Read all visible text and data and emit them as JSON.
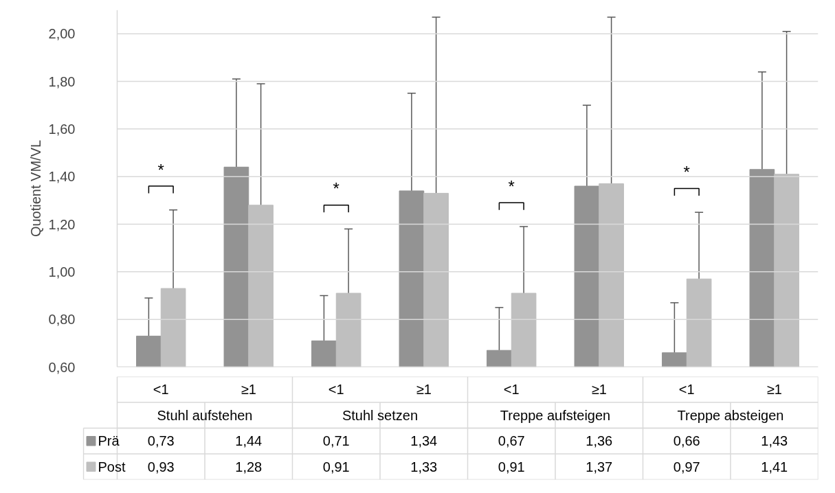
{
  "chart_data": {
    "type": "bar",
    "ylabel": "Quotient VM/VL",
    "categories": [
      "<1",
      "≥1",
      "<1",
      "≥1",
      "<1",
      "≥1",
      "<1",
      "≥1"
    ],
    "series": [
      {
        "name": "Prä",
        "color": "#939393",
        "values": [
          0.73,
          1.44,
          0.71,
          1.34,
          0.67,
          1.36,
          0.66,
          1.43
        ],
        "errors": [
          0.16,
          0.37,
          0.19,
          0.41,
          0.18,
          0.34,
          0.21,
          0.41
        ],
        "value_labels": [
          "0,73",
          "1,44",
          "0,71",
          "1,34",
          "0,67",
          "1,36",
          "0,66",
          "1,43"
        ]
      },
      {
        "name": "Post",
        "color": "#bfbfbf",
        "values": [
          0.93,
          1.28,
          0.91,
          1.33,
          0.91,
          1.37,
          0.97,
          1.41
        ],
        "errors": [
          0.33,
          0.51,
          0.27,
          0.74,
          0.28,
          0.7,
          0.28,
          0.6
        ],
        "value_labels": [
          "0,93",
          "1,28",
          "0,91",
          "1,33",
          "0,91",
          "1,37",
          "0,97",
          "1,41"
        ]
      }
    ],
    "annotations": [
      "Stuhl aufstehen",
      "Stuhl setzen",
      "Treppe aufsteigen",
      "Treppe absteigen",
      "*",
      "*",
      "*",
      "*"
    ],
    "ylim": [
      0.6,
      2.1
    ],
    "yticks": [
      {
        "value": 0.6,
        "label": "0,60"
      },
      {
        "value": 0.8,
        "label": "0,80"
      },
      {
        "value": 1.0,
        "label": "1,00"
      },
      {
        "value": 1.2,
        "label": "1,20"
      },
      {
        "value": 1.4,
        "label": "1,40"
      },
      {
        "value": 1.6,
        "label": "1,60"
      },
      {
        "value": 1.8,
        "label": "1,80"
      },
      {
        "value": 2.0,
        "label": "2,00"
      }
    ],
    "grid": "y",
    "legend": "bottom"
  }
}
